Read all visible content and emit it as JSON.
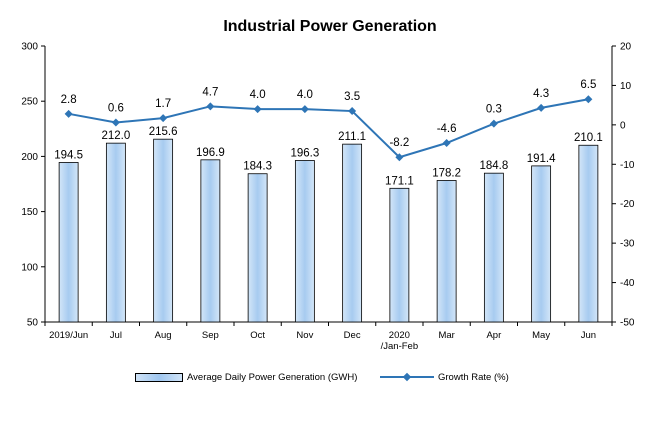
{
  "chart_data": {
    "type": "bar",
    "title": "Industrial Power Generation",
    "categories": [
      "2019/Jun",
      "Jul",
      "Aug",
      "Sep",
      "Oct",
      "Nov",
      "Dec",
      "2020\n/Jan-Feb",
      "Mar",
      "Apr",
      "May",
      "Jun"
    ],
    "series": [
      {
        "name": "Average Daily Power Generation (GWH)",
        "type": "bar",
        "axis": "left",
        "values": [
          194.5,
          212.0,
          215.6,
          196.9,
          184.3,
          196.3,
          211.1,
          171.1,
          178.2,
          184.8,
          191.4,
          210.1
        ],
        "labels": [
          "194.5",
          "212.0",
          "215.6",
          "196.9",
          "184.3",
          "196.3",
          "211.1",
          "171.1",
          "178.2",
          "184.8",
          "191.4",
          "210.1"
        ]
      },
      {
        "name": "Growth Rate (%)",
        "type": "line",
        "axis": "right",
        "values": [
          2.8,
          0.6,
          1.7,
          4.7,
          4.0,
          4.0,
          3.5,
          -8.2,
          -4.6,
          0.3,
          4.3,
          6.5
        ],
        "labels": [
          "2.8",
          "0.6",
          "1.7",
          "4.7",
          "4.0",
          "4.0",
          "3.5",
          "-8.2",
          "-4.6",
          "0.3",
          "4.3",
          "6.5"
        ]
      }
    ],
    "y_left": {
      "min": 50,
      "max": 300,
      "ticks": [
        "50",
        "100",
        "150",
        "200",
        "250",
        "300"
      ]
    },
    "y_right": {
      "min": -50,
      "max": 20,
      "ticks": [
        "-50",
        "-40",
        "-30",
        "-20",
        "-10",
        "0",
        "10",
        "20"
      ]
    },
    "grid": false,
    "legend_position": "bottom",
    "colors": {
      "bar_fill": "#a7cbf0",
      "bar_stroke": "#000000",
      "line": "#2e75b6"
    }
  }
}
